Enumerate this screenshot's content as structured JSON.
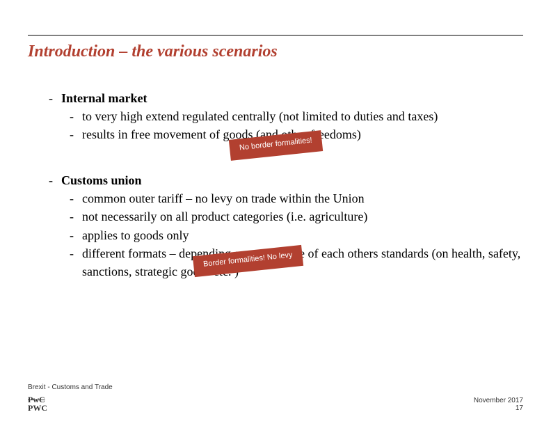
{
  "title": "Introduction – the various scenarios",
  "colors": {
    "title_color": "#b24030",
    "callout_bg": "#b24030",
    "callout_text": "#ffffff",
    "text_color": "#000000"
  },
  "section1": {
    "heading": "Internal market",
    "items": [
      "to very high extend regulated centrally (not limited to duties and taxes)",
      "results in free movement of goods (and other freedoms)"
    ],
    "callout": "No border formalities!"
  },
  "section2": {
    "heading": "Customs union",
    "items": [
      "common outer tariff – no levy on trade within the Union",
      "not necessarily on all product categories (i.e. agriculture)",
      "applies to goods only",
      "different formats – depending on acceptance of each others standards (on health, safety, sanctions, strategic goods etc. )"
    ],
    "callout": "Border formalities! No levy"
  },
  "footer": {
    "left": "Brexit - Customs and Trade",
    "date": "November 2017",
    "page": "17",
    "logo_top": "PwC",
    "logo_bottom": "PWC"
  }
}
